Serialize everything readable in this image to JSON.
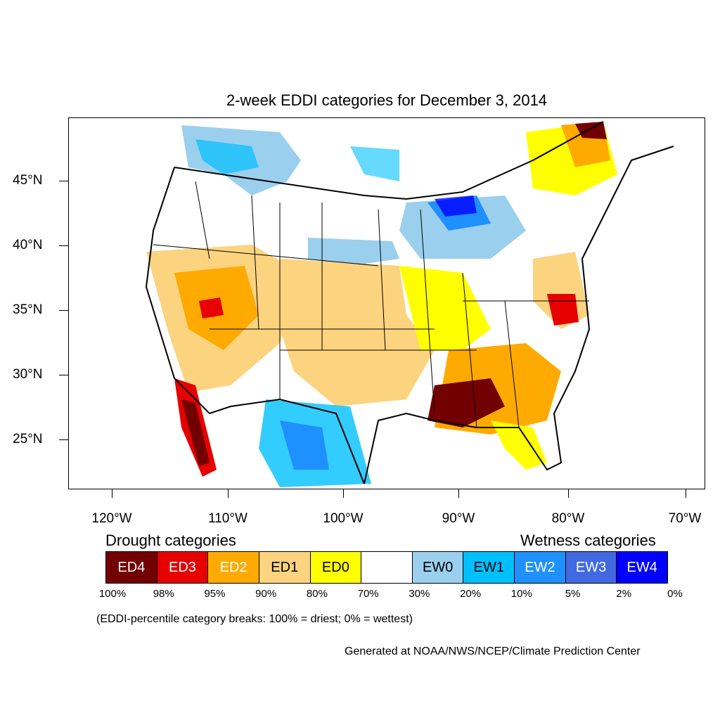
{
  "title": "2-week EDDI categories for December 3, 2014",
  "lat_labels": [
    "45°N",
    "40°N",
    "35°N",
    "30°N",
    "25°N"
  ],
  "lon_labels": [
    "120°W",
    "110°W",
    "100°W",
    "90°W",
    "80°W",
    "70°W"
  ],
  "legend": {
    "drought_heading": "Drought categories",
    "wetness_heading": "Wetness categories",
    "categories": [
      {
        "label": "ED4",
        "color": "#730000",
        "text_color": "#ffffff"
      },
      {
        "label": "ED3",
        "color": "#e60000",
        "text_color": "#ffffff"
      },
      {
        "label": "ED2",
        "color": "#ffaa00",
        "text_color": "#ffffff"
      },
      {
        "label": "ED1",
        "color": "#fcd37f",
        "text_color": "#000000"
      },
      {
        "label": "ED0",
        "color": "#ffff00",
        "text_color": "#000000"
      },
      {
        "label": "",
        "color": "#ffffff",
        "text_color": "#000000"
      },
      {
        "label": "EW0",
        "color": "#9bcfee",
        "text_color": "#000000"
      },
      {
        "label": "EW1",
        "color": "#00bfff",
        "text_color": "#000000"
      },
      {
        "label": "EW2",
        "color": "#1e90ff",
        "text_color": "#ffffff"
      },
      {
        "label": "EW3",
        "color": "#4169e1",
        "text_color": "#ffffff"
      },
      {
        "label": "EW4",
        "color": "#0000ff",
        "text_color": "#ffffff"
      }
    ],
    "breaks": [
      "100%",
      "98%",
      "95%",
      "90%",
      "80%",
      "70%",
      "30%",
      "20%",
      "10%",
      "5%",
      "2%",
      "0%"
    ]
  },
  "note": "(EDDI-percentile category breaks: 100% = driest; 0% = wettest)",
  "credit": "Generated at NOAA/NWS/NCEP/Climate Prediction Center"
}
